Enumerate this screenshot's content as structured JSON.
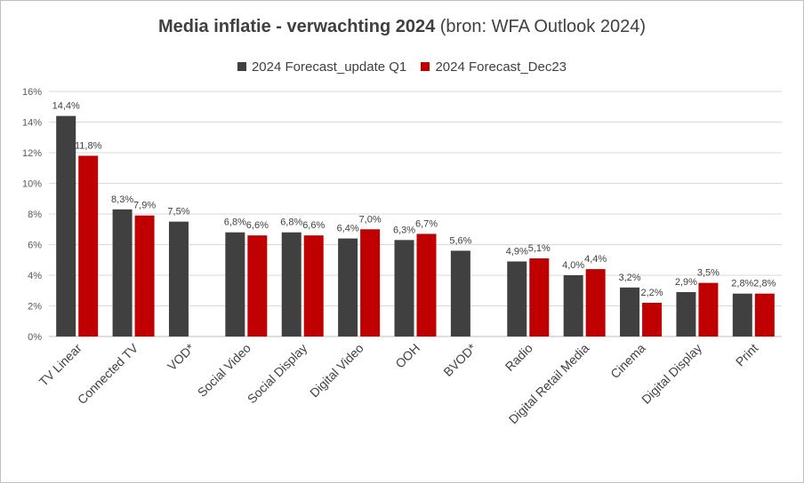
{
  "chart_data": {
    "type": "bar",
    "title_bold": "Media inflatie - verwachting 2024",
    "title_rest": " (bron: WFA Outlook 2024)",
    "xlabel": "",
    "ylabel": "",
    "ylim": [
      0,
      16
    ],
    "yticks": [
      "0%",
      "2%",
      "4%",
      "6%",
      "8%",
      "10%",
      "12%",
      "14%",
      "16%"
    ],
    "grid": true,
    "legend_position": "top",
    "categories": [
      "TV Linear",
      "Connected TV",
      "VOD*",
      "Social Video",
      "Social Display",
      "Digital Video",
      "OOH",
      "BVOD*",
      "Radio",
      "Digital Retail Media",
      "Cinema",
      "Digital Display",
      "Print"
    ],
    "series": [
      {
        "name": "2024 Forecast_update Q1",
        "color": "#404040",
        "values": [
          14.4,
          8.3,
          7.5,
          6.8,
          6.8,
          6.4,
          6.3,
          5.6,
          4.9,
          4.0,
          3.2,
          2.9,
          2.8
        ],
        "labels": [
          "14,4%",
          "8,3%",
          "7,5%",
          "6,8%",
          "6,8%",
          "6,4%",
          "6,3%",
          "5,6%",
          "4,9%",
          "4,0%",
          "3,2%",
          "2,9%",
          "2,8%"
        ]
      },
      {
        "name": "2024 Forecast_Dec23",
        "color": "#c00000",
        "values": [
          11.8,
          7.9,
          null,
          6.6,
          6.6,
          7.0,
          6.7,
          null,
          5.1,
          4.4,
          2.2,
          3.5,
          2.8
        ],
        "labels": [
          "11,8%",
          "7,9%",
          null,
          "6,6%",
          "6,6%",
          "7,0%",
          "6,7%",
          null,
          "5,1%",
          "4,4%",
          "2,2%",
          "3,5%",
          "2,8%"
        ]
      }
    ]
  }
}
